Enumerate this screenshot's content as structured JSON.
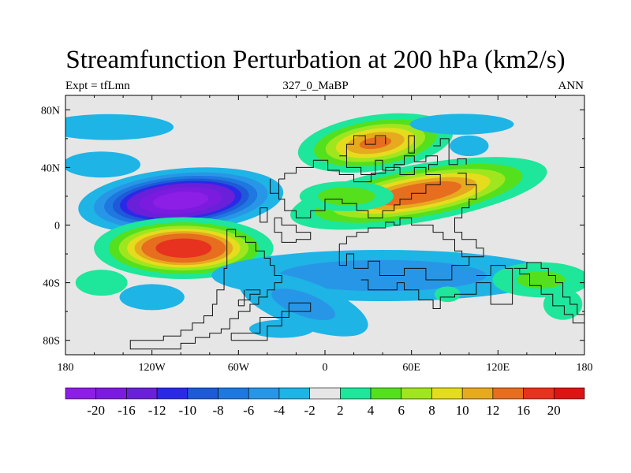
{
  "chart_data": {
    "type": "heatmap",
    "title": "Streamfunction Perturbation at 200 hPa (km2/s)",
    "subtitle_left": "Expt = tfLmn",
    "subtitle_center": "327_0_MaBP",
    "subtitle_right": "ANN",
    "xlim": [
      -180,
      180
    ],
    "ylim": [
      -90,
      90
    ],
    "x_ticks": [
      {
        "value": -180,
        "label": "180"
      },
      {
        "value": -120,
        "label": "120W"
      },
      {
        "value": -60,
        "label": "60W"
      },
      {
        "value": 0,
        "label": "0"
      },
      {
        "value": 60,
        "label": "60E"
      },
      {
        "value": 120,
        "label": "120E"
      },
      {
        "value": 180,
        "label": "180"
      }
    ],
    "y_ticks": [
      {
        "value": 80,
        "label": "80N"
      },
      {
        "value": 40,
        "label": "40N"
      },
      {
        "value": 0,
        "label": "0"
      },
      {
        "value": -40,
        "label": "40S"
      },
      {
        "value": -80,
        "label": "80S"
      }
    ],
    "colorbar": {
      "labels": [
        "-20",
        "-16",
        "-12",
        "-10",
        "-8",
        "-6",
        "-4",
        "-2",
        "2",
        "4",
        "6",
        "8",
        "10",
        "12",
        "16",
        "20"
      ],
      "colors": [
        "#8c1ee6",
        "#7c1be0",
        "#6a20d8",
        "#2a2ae6",
        "#1e5ad8",
        "#1e78e0",
        "#2896e6",
        "#1eb4e6",
        "#e6e6e6",
        "#1ee69b",
        "#55e01e",
        "#a0e61e",
        "#e6dc1e",
        "#e6aa1e",
        "#e66e1e",
        "#e6321e",
        "#dc1414"
      ]
    },
    "fields": [
      {
        "name": "pacific-low-nh",
        "lon": -100,
        "lat": 17,
        "sx": 32,
        "sy": 10,
        "amp": -24,
        "rot": -5
      },
      {
        "name": "pacific-high-sh",
        "lon": -98,
        "lat": -16,
        "sx": 29,
        "sy": 10,
        "amp": 20,
        "rot": 0
      },
      {
        "name": "eurasia-high",
        "lon": 65,
        "lat": 22,
        "sx": 45,
        "sy": 10,
        "amp": 15,
        "rot": -10
      },
      {
        "name": "asia-high-west",
        "lon": 15,
        "lat": 20,
        "sx": 22,
        "sy": 7,
        "amp": 6,
        "rot": 0
      },
      {
        "name": "north-atlantic-high",
        "lon": 35,
        "lat": 57,
        "sx": 28,
        "sy": 10,
        "amp": 13,
        "rot": -8
      },
      {
        "name": "tropics-low-south",
        "lon": 40,
        "lat": -35,
        "sx": 80,
        "sy": 12,
        "amp": -6,
        "rot": 0
      },
      {
        "name": "arctic-low-band",
        "lon": -150,
        "lat": 68,
        "sx": 50,
        "sy": 10,
        "amp": -3,
        "rot": 0
      },
      {
        "name": "arctic-low-east",
        "lon": 95,
        "lat": 70,
        "sx": 40,
        "sy": 8,
        "amp": -3,
        "rot": 0
      },
      {
        "name": "high-lat-low-west",
        "lon": -155,
        "lat": 42,
        "sx": 30,
        "sy": 10,
        "amp": -3,
        "rot": 0
      },
      {
        "name": "south-atlantic-low",
        "lon": -15,
        "lat": -55,
        "sx": 35,
        "sy": 12,
        "amp": -5,
        "rot": 20
      },
      {
        "name": "south-pacific-low",
        "lon": -30,
        "lat": -72,
        "sx": 25,
        "sy": 7,
        "amp": -3,
        "rot": 0
      },
      {
        "name": "far-sw-low",
        "lon": -120,
        "lat": -50,
        "sx": 25,
        "sy": 10,
        "amp": -3,
        "rot": 0
      },
      {
        "name": "west-pacific-high",
        "lon": -155,
        "lat": -40,
        "sx": 20,
        "sy": 10,
        "amp": 3,
        "rot": 0
      },
      {
        "name": "south-indian-high",
        "lon": 150,
        "lat": -38,
        "sx": 25,
        "sy": 9,
        "amp": 5,
        "rot": 0
      },
      {
        "name": "south-indian-high-2",
        "lon": 165,
        "lat": -55,
        "sx": 15,
        "sy": 12,
        "amp": 3,
        "rot": 0
      },
      {
        "name": "south-mid-high",
        "lon": 85,
        "lat": -48,
        "sx": 10,
        "sy": 6,
        "amp": 3,
        "rot": 0
      },
      {
        "name": "north-east-low",
        "lon": 100,
        "lat": 55,
        "sx": 15,
        "sy": 8,
        "amp": -3,
        "rot": 0
      }
    ],
    "continent_outline": [
      [
        [
          -68,
          -3
        ],
        [
          -62,
          -3
        ],
        [
          -62,
          -8
        ],
        [
          -55,
          -8
        ],
        [
          -55,
          -12
        ],
        [
          -48,
          -12
        ],
        [
          -48,
          -18
        ],
        [
          -42,
          -18
        ],
        [
          -42,
          -23
        ],
        [
          -38,
          -23
        ],
        [
          -38,
          -28
        ],
        [
          -35,
          -28
        ],
        [
          -35,
          -35
        ],
        [
          -30,
          -35
        ],
        [
          -30,
          -40
        ],
        [
          -35,
          -40
        ],
        [
          -35,
          -45
        ],
        [
          -40,
          -45
        ],
        [
          -40,
          -50
        ],
        [
          -46,
          -50
        ],
        [
          -46,
          -55
        ],
        [
          -52,
          -55
        ],
        [
          -52,
          -60
        ],
        [
          -60,
          -60
        ],
        [
          -60,
          -65
        ],
        [
          -66,
          -65
        ],
        [
          -66,
          -72
        ],
        [
          -72,
          -72
        ],
        [
          -72,
          -75
        ],
        [
          -80,
          -75
        ],
        [
          -80,
          -78
        ],
        [
          -90,
          -78
        ],
        [
          -90,
          -82
        ],
        [
          -100,
          -82
        ],
        [
          -100,
          -86
        ],
        [
          -135,
          -86
        ],
        [
          -135,
          -80
        ],
        [
          -112,
          -80
        ],
        [
          -112,
          -77
        ],
        [
          -100,
          -77
        ],
        [
          -100,
          -73
        ],
        [
          -92,
          -73
        ],
        [
          -92,
          -68
        ],
        [
          -84,
          -68
        ],
        [
          -84,
          -63
        ],
        [
          -78,
          -63
        ],
        [
          -78,
          -55
        ],
        [
          -75,
          -55
        ],
        [
          -75,
          -45
        ],
        [
          -70,
          -45
        ],
        [
          -70,
          -30
        ],
        [
          -68,
          -30
        ],
        [
          -68,
          -3
        ]
      ],
      [
        [
          -55,
          -45
        ],
        [
          -45,
          -45
        ],
        [
          -45,
          -48
        ],
        [
          -52,
          -48
        ],
        [
          -52,
          -52
        ],
        [
          -60,
          -52
        ],
        [
          -60,
          -56
        ],
        [
          -56,
          -56
        ],
        [
          -56,
          -45
        ]
      ],
      [
        [
          -65,
          -80
        ],
        [
          -40,
          -80
        ],
        [
          -40,
          -70
        ],
        [
          -30,
          -70
        ],
        [
          -30,
          -60
        ],
        [
          -10,
          -60
        ],
        [
          -10,
          -54
        ],
        [
          -25,
          -54
        ],
        [
          -25,
          -64
        ],
        [
          -45,
          -64
        ],
        [
          -45,
          -75
        ],
        [
          -65,
          -75
        ],
        [
          -65,
          -80
        ]
      ],
      [
        [
          -35,
          5
        ],
        [
          -30,
          5
        ],
        [
          -30,
          0
        ],
        [
          -20,
          0
        ],
        [
          -20,
          -5
        ],
        [
          -10,
          -5
        ],
        [
          -10,
          -10
        ],
        [
          -20,
          -10
        ],
        [
          -20,
          -12
        ],
        [
          -30,
          -12
        ],
        [
          -30,
          -5
        ],
        [
          -35,
          -5
        ],
        [
          -35,
          5
        ]
      ],
      [
        [
          10,
          -13
        ],
        [
          15,
          -13
        ],
        [
          15,
          -8
        ],
        [
          22,
          -8
        ],
        [
          22,
          -5
        ],
        [
          30,
          -5
        ],
        [
          30,
          -2
        ],
        [
          42,
          -2
        ],
        [
          42,
          2
        ],
        [
          48,
          2
        ],
        [
          48,
          0
        ],
        [
          52,
          0
        ],
        [
          52,
          5
        ],
        [
          60,
          5
        ],
        [
          60,
          0
        ],
        [
          75,
          0
        ],
        [
          75,
          -5
        ],
        [
          82,
          -5
        ],
        [
          82,
          -10
        ],
        [
          90,
          -10
        ],
        [
          90,
          -18
        ],
        [
          95,
          -18
        ],
        [
          95,
          -22
        ],
        [
          100,
          -22
        ],
        [
          100,
          -28
        ],
        [
          88,
          -28
        ],
        [
          88,
          -38
        ],
        [
          70,
          -38
        ],
        [
          70,
          -30
        ],
        [
          55,
          -30
        ],
        [
          55,
          -35
        ],
        [
          38,
          -35
        ],
        [
          38,
          -25
        ],
        [
          30,
          -25
        ],
        [
          30,
          -30
        ],
        [
          20,
          -30
        ],
        [
          20,
          -20
        ],
        [
          15,
          -20
        ],
        [
          15,
          -28
        ],
        [
          10,
          -28
        ],
        [
          10,
          -13
        ]
      ],
      [
        [
          25,
          -38
        ],
        [
          30,
          -38
        ],
        [
          30,
          -45
        ],
        [
          50,
          -45
        ],
        [
          50,
          -40
        ],
        [
          55,
          -40
        ],
        [
          55,
          -45
        ],
        [
          65,
          -45
        ],
        [
          65,
          -52
        ],
        [
          75,
          -52
        ],
        [
          75,
          -58
        ],
        [
          80,
          -58
        ],
        [
          80,
          -50
        ],
        [
          90,
          -50
        ],
        [
          90,
          -48
        ],
        [
          105,
          -48
        ],
        [
          105,
          -40
        ],
        [
          115,
          -40
        ],
        [
          115,
          -55
        ],
        [
          130,
          -55
        ],
        [
          130,
          -30
        ],
        [
          125,
          -30
        ],
        [
          125,
          -28
        ],
        [
          115,
          -28
        ],
        [
          115,
          -35
        ],
        [
          105,
          -35
        ]
      ],
      [
        [
          131,
          -30
        ],
        [
          140,
          -30
        ],
        [
          140,
          -26
        ],
        [
          150,
          -26
        ],
        [
          150,
          -30
        ],
        [
          155,
          -30
        ],
        [
          155,
          -35
        ],
        [
          160,
          -35
        ],
        [
          160,
          -40
        ],
        [
          165,
          -40
        ],
        [
          165,
          -50
        ],
        [
          170,
          -50
        ],
        [
          170,
          -55
        ],
        [
          175,
          -55
        ],
        [
          175,
          -62
        ],
        [
          180,
          -62
        ],
        [
          180,
          -68
        ],
        [
          172,
          -68
        ],
        [
          172,
          -62
        ],
        [
          166,
          -62
        ],
        [
          166,
          -56
        ],
        [
          158,
          -56
        ],
        [
          158,
          -48
        ],
        [
          150,
          -48
        ],
        [
          150,
          -42
        ],
        [
          142,
          -42
        ],
        [
          142,
          -34
        ],
        [
          135,
          -34
        ],
        [
          135,
          -30
        ]
      ],
      [
        [
          -32,
          32
        ],
        [
          -28,
          32
        ],
        [
          -28,
          36
        ],
        [
          -20,
          36
        ],
        [
          -20,
          40
        ],
        [
          -8,
          40
        ],
        [
          -8,
          45
        ],
        [
          2,
          45
        ],
        [
          2,
          38
        ],
        [
          10,
          38
        ],
        [
          10,
          35
        ],
        [
          20,
          35
        ],
        [
          20,
          30
        ],
        [
          32,
          30
        ],
        [
          32,
          36
        ],
        [
          42,
          36
        ],
        [
          42,
          40
        ],
        [
          52,
          40
        ],
        [
          52,
          35
        ],
        [
          62,
          35
        ],
        [
          62,
          40
        ],
        [
          70,
          40
        ],
        [
          70,
          35
        ],
        [
          80,
          35
        ],
        [
          80,
          28
        ],
        [
          70,
          28
        ],
        [
          70,
          22
        ],
        [
          60,
          22
        ],
        [
          60,
          18
        ],
        [
          52,
          18
        ],
        [
          52,
          14
        ],
        [
          48,
          14
        ],
        [
          48,
          10
        ],
        [
          40,
          10
        ],
        [
          40,
          5
        ],
        [
          30,
          5
        ],
        [
          30,
          10
        ],
        [
          22,
          10
        ],
        [
          22,
          15
        ],
        [
          12,
          15
        ],
        [
          12,
          18
        ],
        [
          0,
          18
        ],
        [
          0,
          10
        ],
        [
          -10,
          10
        ],
        [
          -10,
          5
        ],
        [
          -20,
          5
        ],
        [
          -20,
          10
        ],
        [
          -28,
          10
        ],
        [
          -28,
          18
        ],
        [
          -32,
          18
        ],
        [
          -32,
          32
        ]
      ],
      [
        [
          -38,
          32
        ],
        [
          -38,
          22
        ],
        [
          -32,
          22
        ]
      ],
      [
        [
          -45,
          12
        ],
        [
          -40,
          12
        ],
        [
          -40,
          2
        ],
        [
          -45,
          2
        ],
        [
          -45,
          12
        ]
      ],
      [
        [
          10,
          48
        ],
        [
          15,
          48
        ],
        [
          15,
          40
        ],
        [
          25,
          40
        ],
        [
          25,
          35
        ],
        [
          35,
          35
        ],
        [
          35,
          45
        ],
        [
          40,
          45
        ],
        [
          40,
          38
        ],
        [
          48,
          38
        ],
        [
          48,
          42
        ],
        [
          55,
          42
        ],
        [
          55,
          48
        ],
        [
          62,
          48
        ],
        [
          62,
          44
        ],
        [
          70,
          44
        ],
        [
          70,
          48
        ],
        [
          78,
          48
        ],
        [
          78,
          42
        ],
        [
          72,
          42
        ],
        [
          72,
          38
        ]
      ],
      [
        [
          15,
          48
        ],
        [
          15,
          56
        ],
        [
          20,
          56
        ],
        [
          20,
          62
        ],
        [
          28,
          62
        ],
        [
          28,
          56
        ],
        [
          35,
          56
        ],
        [
          35,
          62
        ],
        [
          42,
          62
        ],
        [
          42,
          56
        ]
      ],
      [
        [
          58,
          50
        ],
        [
          62,
          50
        ],
        [
          62,
          62
        ],
        [
          58,
          62
        ],
        [
          58,
          50
        ]
      ],
      [
        [
          75,
          55
        ],
        [
          80,
          55
        ],
        [
          80,
          60
        ],
        [
          86,
          60
        ],
        [
          86,
          42
        ],
        [
          92,
          42
        ],
        [
          92,
          46
        ],
        [
          98,
          46
        ],
        [
          98,
          42
        ]
      ],
      [
        [
          92,
          36
        ],
        [
          98,
          36
        ],
        [
          98,
          28
        ],
        [
          105,
          28
        ],
        [
          105,
          18
        ],
        [
          100,
          18
        ],
        [
          100,
          12
        ],
        [
          95,
          12
        ],
        [
          95,
          5
        ],
        [
          90,
          5
        ],
        [
          90,
          -5
        ],
        [
          95,
          -5
        ],
        [
          95,
          -10
        ],
        [
          105,
          -10
        ],
        [
          105,
          -16
        ],
        [
          110,
          -16
        ],
        [
          110,
          -22
        ],
        [
          100,
          -22
        ]
      ]
    ]
  }
}
